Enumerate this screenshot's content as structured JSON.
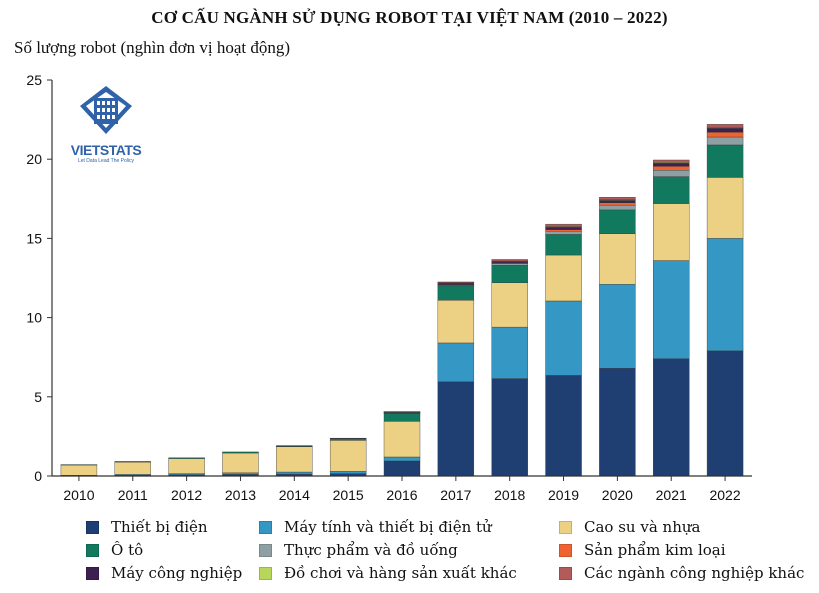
{
  "chart_data": {
    "type": "bar",
    "stacked": true,
    "title": "CƠ CẤU NGÀNH SỬ DỤNG ROBOT TẠI VIỆT NAM (2010 – 2022)",
    "ylabel": "Số lượng robot (nghìn đơn vị hoạt động)",
    "xlabel": "",
    "ylim": [
      0,
      25
    ],
    "yticks": [
      0,
      5,
      10,
      15,
      20,
      25
    ],
    "categories": [
      "2010",
      "2011",
      "2012",
      "2013",
      "2014",
      "2015",
      "2016",
      "2017",
      "2018",
      "2019",
      "2020",
      "2021",
      "2022"
    ],
    "series": [
      {
        "name": "Thiết bị điện",
        "color": "#1f3e72",
        "values": [
          0.02,
          0.05,
          0.08,
          0.1,
          0.12,
          0.15,
          0.95,
          5.95,
          6.15,
          6.35,
          6.8,
          7.4,
          7.9
        ]
      },
      {
        "name": "Máy tính và thiết bị điện tử",
        "color": "#3497c4",
        "values": [
          0.03,
          0.05,
          0.07,
          0.1,
          0.13,
          0.15,
          0.25,
          2.45,
          3.25,
          4.7,
          5.3,
          6.2,
          7.1
        ]
      },
      {
        "name": "Cao su và nhựa",
        "color": "#ecd083",
        "values": [
          0.65,
          0.78,
          0.95,
          1.25,
          1.6,
          1.95,
          2.25,
          2.7,
          2.8,
          2.9,
          3.2,
          3.6,
          3.85
        ]
      },
      {
        "name": "Ô tô",
        "color": "#117a5e",
        "values": [
          0.02,
          0.04,
          0.05,
          0.07,
          0.05,
          0.12,
          0.5,
          0.9,
          1.1,
          1.3,
          1.5,
          1.7,
          2.05
        ]
      },
      {
        "name": "Thực phẩm và đồ uống",
        "color": "#8fa0a4",
        "values": [
          0.0,
          0.0,
          0.0,
          0.0,
          0.0,
          0.0,
          0.02,
          0.05,
          0.1,
          0.2,
          0.3,
          0.4,
          0.5
        ]
      },
      {
        "name": "Sản phẩm kim loại",
        "color": "#ef6331",
        "values": [
          0.0,
          0.0,
          0.0,
          0.0,
          0.0,
          0.0,
          0.02,
          0.03,
          0.05,
          0.1,
          0.15,
          0.25,
          0.3
        ]
      },
      {
        "name": "Máy công nghiệp",
        "color": "#3e2050",
        "values": [
          0.0,
          0.0,
          0.0,
          0.0,
          0.02,
          0.02,
          0.05,
          0.1,
          0.1,
          0.15,
          0.15,
          0.2,
          0.25
        ]
      },
      {
        "name": "Đồ chơi và hàng sản xuất khác",
        "color": "#b8d65a",
        "values": [
          0.0,
          0.0,
          0.0,
          0.0,
          0.0,
          0.0,
          0.01,
          0.02,
          0.02,
          0.05,
          0.05,
          0.05,
          0.05
        ]
      },
      {
        "name": "Các ngành công nghiệp khác",
        "color": "#b35b5b",
        "values": [
          0.0,
          0.0,
          0.0,
          0.0,
          0.0,
          0.0,
          0.02,
          0.05,
          0.1,
          0.15,
          0.15,
          0.15,
          0.2
        ]
      }
    ]
  },
  "logo": {
    "brand": "VIETSTATS",
    "tagline": "Let Data Lead The Policy"
  }
}
